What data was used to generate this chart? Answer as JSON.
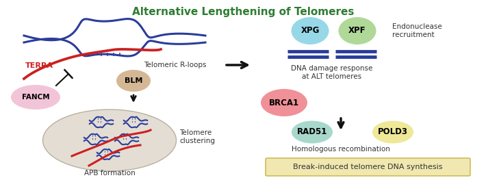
{
  "title": "Alternative Lengthening of Telomeres",
  "title_color": "#2e7d32",
  "title_fontsize": 11,
  "background_color": "#ffffff",
  "labels": {
    "TERRA": "TERRA",
    "telomeric_rloops": "Telomeric R-loops",
    "FANCM": "FANCM",
    "BLM": "BLM",
    "APB": "APB formation",
    "telomere_clustering": "Telomere\nclustering",
    "XPG": "XPG",
    "XPF": "XPF",
    "endonuclease": "Endonuclease\nrecruitment",
    "dna_damage": "DNA damage response\nat ALT telomeres",
    "BRCA1": "BRCA1",
    "RAD51": "RAD51",
    "POLD3": "POLD3",
    "homologous": "Homologous recombination",
    "break_induced": "Break-induced telomere DNA synthesis"
  },
  "ellipse_colors": {
    "FANCM": "#f2c4d8",
    "BLM": "#d4b896",
    "XPG": "#96d8e8",
    "XPF": "#b0d898",
    "BRCA1": "#f09098",
    "RAD51": "#a8d8cc",
    "POLD3": "#eee898"
  },
  "apb_ellipse_color": "#e4ddd4",
  "break_induced_box_color": "#f0e8b0",
  "arrow_color": "#111111",
  "dna_color": "#2a3d9a",
  "terra_color": "#cc2020"
}
